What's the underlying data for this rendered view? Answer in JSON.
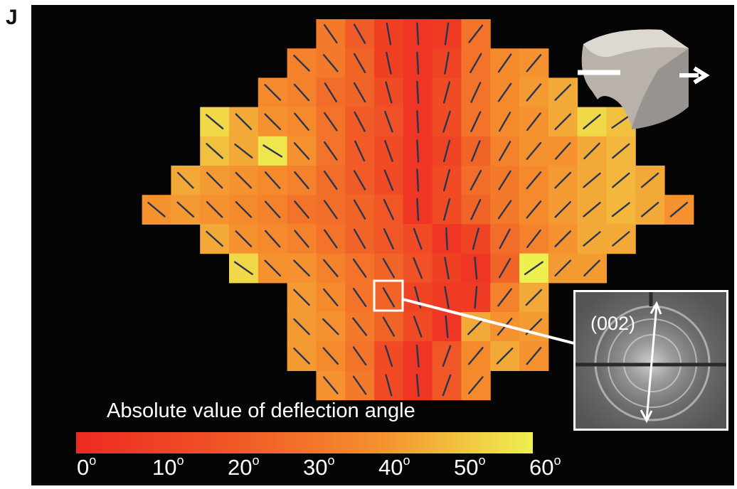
{
  "panel_label": "J",
  "colorbar": {
    "title": "Absolute value of deflection angle",
    "ticks": [
      "0",
      "10",
      "20",
      "30",
      "40",
      "50",
      "60"
    ],
    "degree_symbol": "o",
    "colors": [
      "#ee2a22",
      "#f05526",
      "#f58f2e",
      "#eef050"
    ]
  },
  "inset": {
    "label": "(002)"
  },
  "grid": {
    "rows": [
      {
        "c0": 8,
        "angles": [
          -35,
          -30,
          -10,
          -3,
          8,
          38
        ]
      },
      {
        "c0": 7,
        "angles": [
          -45,
          -40,
          -30,
          -12,
          -3,
          10,
          30,
          35,
          40
        ]
      },
      {
        "c0": 6,
        "angles": [
          -45,
          -42,
          -32,
          -30,
          -15,
          -3,
          15,
          25,
          35,
          40,
          45
        ]
      },
      {
        "c0": 4,
        "angles": [
          -50,
          -45,
          -45,
          -40,
          -35,
          -28,
          -20,
          -3,
          18,
          25,
          30,
          38,
          45,
          50,
          55
        ]
      },
      {
        "c0": 4,
        "angles": [
          -48,
          -52,
          -58,
          -42,
          -35,
          -25,
          -20,
          -3,
          15,
          22,
          30,
          40,
          42,
          45,
          50
        ]
      },
      {
        "c0": 3,
        "angles": [
          -45,
          -45,
          -45,
          -42,
          -40,
          -35,
          -30,
          -22,
          -3,
          15,
          28,
          32,
          40,
          45,
          50,
          50,
          50
        ]
      },
      {
        "c0": 2,
        "angles": [
          -50,
          -48,
          -45,
          -45,
          -42,
          -40,
          -35,
          -30,
          -25,
          -3,
          15,
          25,
          35,
          40,
          45,
          50,
          52,
          50,
          50
        ]
      },
      {
        "c0": 4,
        "angles": [
          -48,
          -45,
          -42,
          -40,
          -35,
          -30,
          -25,
          -20,
          -3,
          15,
          28,
          38,
          45,
          50,
          50
        ]
      },
      {
        "c0": 5,
        "angles": [
          -55,
          -45,
          -45,
          -40,
          -35,
          -30,
          -22,
          -10,
          -5,
          30,
          55,
          45,
          45
        ]
      },
      {
        "c0": 7,
        "angles": [
          -45,
          -40,
          -35,
          -30,
          -15,
          -10,
          5,
          38,
          45
        ]
      },
      {
        "c0": 7,
        "angles": [
          -45,
          -45,
          -38,
          -30,
          -20,
          -5,
          45,
          40,
          45
        ]
      },
      {
        "c0": 7,
        "angles": [
          -45,
          -42,
          -35,
          -18,
          -5,
          20,
          40,
          45,
          40
        ]
      },
      {
        "c0": 8,
        "angles": [
          -40,
          -35,
          -15,
          -5,
          20,
          40
        ]
      }
    ],
    "values": [
      [
        32,
        22,
        10,
        5,
        8,
        30
      ],
      [
        35,
        32,
        25,
        10,
        5,
        12,
        30,
        38,
        40
      ],
      [
        38,
        35,
        28,
        25,
        15,
        5,
        15,
        30,
        38,
        42,
        45
      ],
      [
        55,
        45,
        40,
        38,
        30,
        22,
        18,
        5,
        15,
        30,
        38,
        40,
        45,
        55,
        50
      ],
      [
        50,
        45,
        58,
        40,
        30,
        22,
        15,
        5,
        12,
        25,
        35,
        40,
        40,
        45,
        48
      ],
      [
        45,
        42,
        40,
        38,
        35,
        28,
        22,
        15,
        5,
        15,
        28,
        32,
        38,
        42,
        45,
        48,
        45
      ],
      [
        40,
        42,
        40,
        38,
        35,
        30,
        28,
        25,
        20,
        5,
        15,
        25,
        32,
        38,
        42,
        45,
        48,
        45,
        40
      ],
      [
        45,
        40,
        38,
        35,
        30,
        25,
        20,
        15,
        5,
        12,
        28,
        35,
        40,
        45,
        45
      ],
      [
        55,
        40,
        40,
        35,
        30,
        25,
        18,
        10,
        5,
        25,
        60,
        42,
        42
      ],
      [
        42,
        38,
        30,
        25,
        12,
        8,
        8,
        35,
        45
      ],
      [
        42,
        40,
        32,
        25,
        15,
        5,
        45,
        40,
        42
      ],
      [
        42,
        38,
        30,
        15,
        5,
        20,
        38,
        45,
        40
      ],
      [
        40,
        32,
        15,
        5,
        20,
        38
      ]
    ]
  }
}
